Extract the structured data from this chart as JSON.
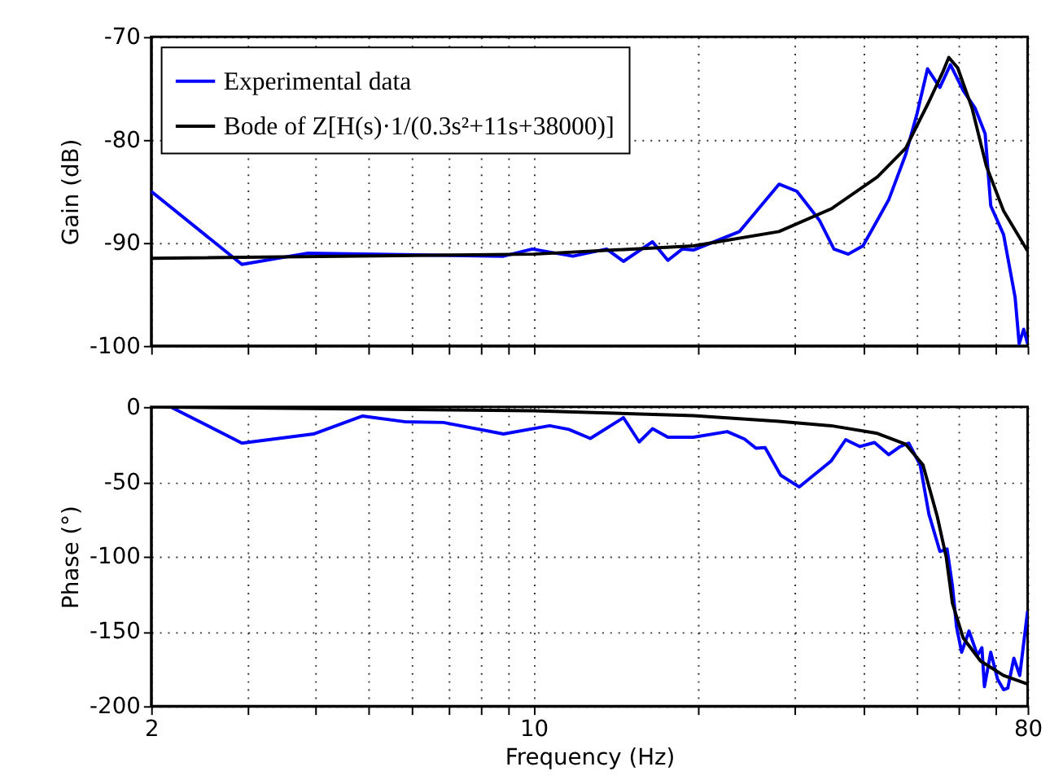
{
  "chart_data": [
    {
      "type": "line",
      "ylabel": "Gain (dB)",
      "log": "x",
      "xlim": [
        2,
        80
      ],
      "ylim": [
        -100,
        -70
      ],
      "yticks": [
        -100,
        -90,
        -80,
        -70
      ],
      "xticks": [
        2,
        {
          "value": 3,
          "label": null
        },
        {
          "value": 4,
          "label": null
        },
        {
          "value": 5,
          "label": null
        },
        {
          "value": 6,
          "label": null
        },
        {
          "value": 7,
          "label": null
        },
        {
          "value": 8,
          "label": null
        },
        {
          "value": 9,
          "label": null
        },
        10,
        {
          "value": 20,
          "label": null
        },
        {
          "value": 30,
          "label": null
        },
        {
          "value": 40,
          "label": null
        },
        {
          "value": 50,
          "label": null
        },
        {
          "value": 60,
          "label": null
        },
        {
          "value": 70,
          "label": null
        },
        80
      ],
      "tick_labels": "y",
      "grid": true,
      "legend": "top left",
      "line_style": "solid",
      "marker": "none",
      "series": [
        {
          "name": "Experimental data",
          "color": "#0000ff",
          "x": [
            2.0,
            2.93,
            3.87,
            8.81,
            9.95,
            11.8,
            13.6,
            14.6,
            16.5,
            17.6,
            18.7,
            19.6,
            23.8,
            28.1,
            30.3,
            33.3,
            35.4,
            37.6,
            40.0,
            42.5,
            44.6,
            47.9,
            50.2,
            52.5,
            55.3,
            57.8,
            61.0,
            64.1,
            66.9,
            68.5,
            72.3,
            75.9,
            77.2,
            78.7,
            80.0
          ],
          "values": [
            -85.0,
            -92.1,
            -91.0,
            -91.3,
            -90.6,
            -91.3,
            -90.6,
            -91.8,
            -89.9,
            -91.7,
            -90.6,
            -90.7,
            -88.9,
            -84.3,
            -85.0,
            -87.8,
            -90.6,
            -91.1,
            -90.3,
            -87.8,
            -85.8,
            -81.4,
            -77.5,
            -73.1,
            -74.9,
            -72.7,
            -75.2,
            -76.9,
            -79.4,
            -86.4,
            -89.2,
            -95.3,
            -99.8,
            -98.4,
            -99.8
          ]
        },
        {
          "name": "Bode of Z[H(s)·1/(0.3s²+11s+38000)]",
          "color": "#000000",
          "x": [
            2.0,
            10.0,
            19.6,
            28.1,
            35.0,
            42.5,
            47.9,
            52.8,
            56.1,
            57.4,
            59.6,
            63.3,
            67.2,
            72.3,
            80.0
          ],
          "values": [
            -91.5,
            -91.1,
            -90.3,
            -88.9,
            -86.7,
            -83.6,
            -80.8,
            -76.3,
            -73.3,
            -72.0,
            -73.0,
            -76.9,
            -82.5,
            -86.9,
            -90.8
          ]
        }
      ]
    },
    {
      "type": "line",
      "xlabel": "Frequency (Hz)",
      "ylabel": "Phase (°)",
      "log": "x",
      "xlim": [
        2,
        80
      ],
      "ylim": [
        -200,
        0
      ],
      "yticks": [
        -200,
        -150,
        -100,
        -50,
        0
      ],
      "xticks": [
        2,
        {
          "value": 3,
          "label": null
        },
        {
          "value": 4,
          "label": null
        },
        {
          "value": 5,
          "label": null
        },
        {
          "value": 6,
          "label": null
        },
        {
          "value": 7,
          "label": null
        },
        {
          "value": 8,
          "label": null
        },
        {
          "value": 9,
          "label": null
        },
        10,
        {
          "value": 20,
          "label": null
        },
        {
          "value": 30,
          "label": null
        },
        {
          "value": 40,
          "label": null
        },
        {
          "value": 50,
          "label": null
        },
        {
          "value": 60,
          "label": null
        },
        {
          "value": 70,
          "label": null
        },
        80
      ],
      "grid": true,
      "line_style": "solid",
      "marker": "none",
      "series": [
        {
          "color": "#0000ff",
          "x": [
            2.17,
            2.93,
            3.96,
            4.87,
            5.84,
            6.84,
            8.81,
            10.7,
            11.6,
            12.7,
            14.6,
            15.6,
            16.5,
            17.6,
            19.6,
            22.6,
            24.3,
            25.5,
            26.5,
            28.3,
            30.6,
            35.0,
            37.2,
            39.5,
            42.0,
            44.6,
            46.8,
            48.5,
            50.9,
            52.8,
            55.3,
            57.0,
            58.3,
            59.3,
            60.6,
            62.5,
            64.8,
            66.0,
            66.7,
            68.5,
            70.5,
            72.3,
            73.6,
            75.5,
            77.4,
            80.0
          ],
          "values": [
            0,
            -24.2,
            -18.1,
            -6.1,
            -10.0,
            -10.4,
            -18.1,
            -12.6,
            -15.0,
            -21.1,
            -7.2,
            -23.4,
            -14.6,
            -20.3,
            -20.3,
            -16.5,
            -21.5,
            -27.6,
            -27.2,
            -45.7,
            -53.5,
            -36.1,
            -21.9,
            -26.5,
            -23.8,
            -31.9,
            -26.5,
            -24.2,
            -38.8,
            -71.6,
            -96.6,
            -95.0,
            -119.7,
            -146.7,
            -164.0,
            -149.8,
            -166.0,
            -161.0,
            -187.0,
            -164.0,
            -182.0,
            -189.0,
            -188.0,
            -168.0,
            -179.5,
            -136.4
          ]
        },
        {
          "color": "#000000",
          "x": [
            2.0,
            10.0,
            19.6,
            28.1,
            35.0,
            42.5,
            47.9,
            51.5,
            54.7,
            56.8,
            58.3,
            61.0,
            65.6,
            72.3,
            80.0
          ],
          "values": [
            0,
            -2.6,
            -5.8,
            -9.6,
            -12.6,
            -17.7,
            -25.0,
            -38.8,
            -73.3,
            -100.5,
            -131.3,
            -154.4,
            -169.8,
            -179.5,
            -185.2
          ]
        }
      ]
    }
  ]
}
